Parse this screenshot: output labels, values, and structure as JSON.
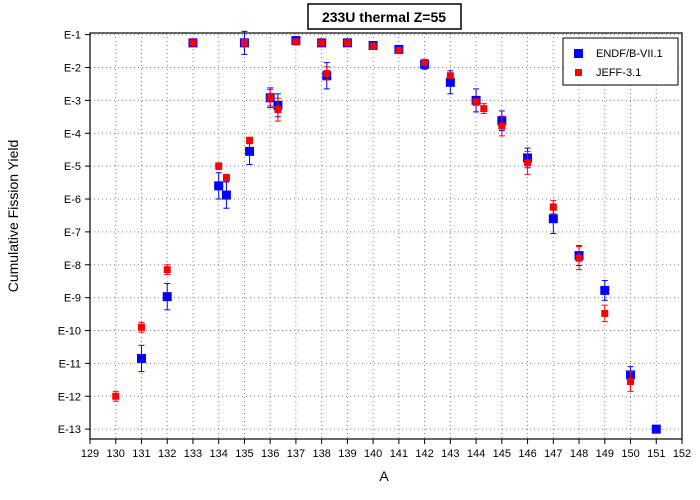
{
  "chart_data": {
    "type": "scatter",
    "title": "233U thermal Z=55",
    "xlabel": "A",
    "ylabel": "Cumulative Fission Yield",
    "xlim": [
      129,
      152
    ],
    "ylim_exponent": [
      -13.3,
      -0.95
    ],
    "y_scale": "log",
    "grid": true,
    "legend_position": "top-right",
    "x_ticks": [
      "129",
      "130",
      "131",
      "132",
      "133",
      "134",
      "135",
      "136",
      "137",
      "138",
      "139",
      "140",
      "141",
      "142",
      "143",
      "144",
      "145",
      "146",
      "147",
      "148",
      "149",
      "150",
      "151",
      "152"
    ],
    "y_ticks": [
      {
        "exp": -1,
        "label": "E-1"
      },
      {
        "exp": -2,
        "label": "E-2"
      },
      {
        "exp": -3,
        "label": "E-3"
      },
      {
        "exp": -4,
        "label": "E-4"
      },
      {
        "exp": -5,
        "label": "E-5"
      },
      {
        "exp": -6,
        "label": "E-6"
      },
      {
        "exp": -7,
        "label": "E-7"
      },
      {
        "exp": -8,
        "label": "E-8"
      },
      {
        "exp": -9,
        "label": "E-9"
      },
      {
        "exp": -10,
        "label": "E-10"
      },
      {
        "exp": -11,
        "label": "E-11"
      },
      {
        "exp": -12,
        "label": "E-12"
      },
      {
        "exp": -13,
        "label": "E-13"
      }
    ],
    "series": [
      {
        "name": "ENDF/B-VII.1",
        "color": "#0000ff",
        "marker": "square",
        "points": [
          {
            "x": 131,
            "y": -10.85,
            "err": 0.4
          },
          {
            "x": 132,
            "y": -8.97,
            "err": 0.4
          },
          {
            "x": 133,
            "y": -1.25,
            "err": 0
          },
          {
            "x": 134,
            "y": -5.6,
            "err": 0.4
          },
          {
            "x": 134.3,
            "y": -5.88,
            "err": 0.4
          },
          {
            "x": 135,
            "y": -1.25,
            "err": 0.35
          },
          {
            "x": 135.2,
            "y": -4.55,
            "err": 0.4
          },
          {
            "x": 136,
            "y": -2.92,
            "err": 0.3
          },
          {
            "x": 136.3,
            "y": -3.15,
            "err": 0.35
          },
          {
            "x": 137,
            "y": -1.18,
            "err": 0
          },
          {
            "x": 138,
            "y": -1.25,
            "err": 0
          },
          {
            "x": 138.2,
            "y": -2.25,
            "err": 0.4
          },
          {
            "x": 139,
            "y": -1.25,
            "err": 0
          },
          {
            "x": 140,
            "y": -1.33,
            "err": 0
          },
          {
            "x": 141,
            "y": -1.45,
            "err": 0
          },
          {
            "x": 142,
            "y": -1.9,
            "err": 0.15
          },
          {
            "x": 143,
            "y": -2.45,
            "err": 0.35
          },
          {
            "x": 144,
            "y": -3.0,
            "err": 0.35
          },
          {
            "x": 145,
            "y": -3.62,
            "err": 0.3
          },
          {
            "x": 146,
            "y": -4.75,
            "err": 0.3
          },
          {
            "x": 147,
            "y": -6.6,
            "err": 0.45
          },
          {
            "x": 148,
            "y": -7.72,
            "err": 0.3
          },
          {
            "x": 149,
            "y": -8.78,
            "err": 0.3
          },
          {
            "x": 150,
            "y": -11.35,
            "err": 0.25
          },
          {
            "x": 151,
            "y": -13.0,
            "err": 0
          }
        ]
      },
      {
        "name": "JEFF-3.1",
        "color": "#ff0000",
        "marker": "square",
        "points": [
          {
            "x": 130,
            "y": -12.0,
            "err": 0.15
          },
          {
            "x": 131,
            "y": -9.9,
            "err": 0.15
          },
          {
            "x": 132,
            "y": -8.15,
            "err": 0.15
          },
          {
            "x": 133,
            "y": -1.25,
            "err": 0
          },
          {
            "x": 134,
            "y": -5.0,
            "err": 0.1
          },
          {
            "x": 134.3,
            "y": -5.35,
            "err": 0.1
          },
          {
            "x": 135,
            "y": -1.25,
            "err": 0.1
          },
          {
            "x": 135.2,
            "y": -4.22,
            "err": 0.1
          },
          {
            "x": 136,
            "y": -2.92,
            "err": 0.25
          },
          {
            "x": 136.3,
            "y": -3.28,
            "err": 0.35
          },
          {
            "x": 137,
            "y": -1.22,
            "err": 0
          },
          {
            "x": 138,
            "y": -1.25,
            "err": 0
          },
          {
            "x": 138.2,
            "y": -2.18,
            "err": 0.2
          },
          {
            "x": 139,
            "y": -1.25,
            "err": 0
          },
          {
            "x": 140,
            "y": -1.35,
            "err": 0
          },
          {
            "x": 141,
            "y": -1.48,
            "err": 0
          },
          {
            "x": 142,
            "y": -1.85,
            "err": 0
          },
          {
            "x": 143,
            "y": -2.25,
            "err": 0
          },
          {
            "x": 144,
            "y": -3.05,
            "err": 0.1
          },
          {
            "x": 144.3,
            "y": -3.25,
            "err": 0.15
          },
          {
            "x": 145,
            "y": -3.78,
            "err": 0.3
          },
          {
            "x": 146,
            "y": -4.9,
            "err": 0.35
          },
          {
            "x": 147,
            "y": -6.25,
            "err": 0.2
          },
          {
            "x": 148,
            "y": -7.8,
            "err": 0.35
          },
          {
            "x": 149,
            "y": -9.48,
            "err": 0.25
          },
          {
            "x": 150,
            "y": -11.55,
            "err": 0.3
          }
        ]
      }
    ]
  }
}
